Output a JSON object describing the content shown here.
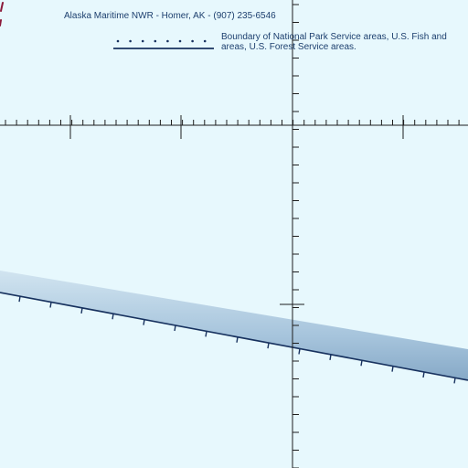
{
  "header_note": "Alaska Maritime NWR - Homer, AK - (907) 235-6546",
  "legend": {
    "label_line1": "Boundary of National Park Service areas, U.S. Fish and",
    "label_line2": "areas, U.S. Forest Service areas."
  },
  "colors": {
    "background": "#e7f8fd",
    "text": "#1c3f6e",
    "grid_line": "#1e1e1e",
    "boundary_dark": "#17315e",
    "band_light": "#d1e4f0",
    "band_dark": "#86a9c7",
    "accent_red": "#8b1a3a"
  },
  "icons": {
    "legend_symbol": "dotted-boundary-line-icon"
  }
}
